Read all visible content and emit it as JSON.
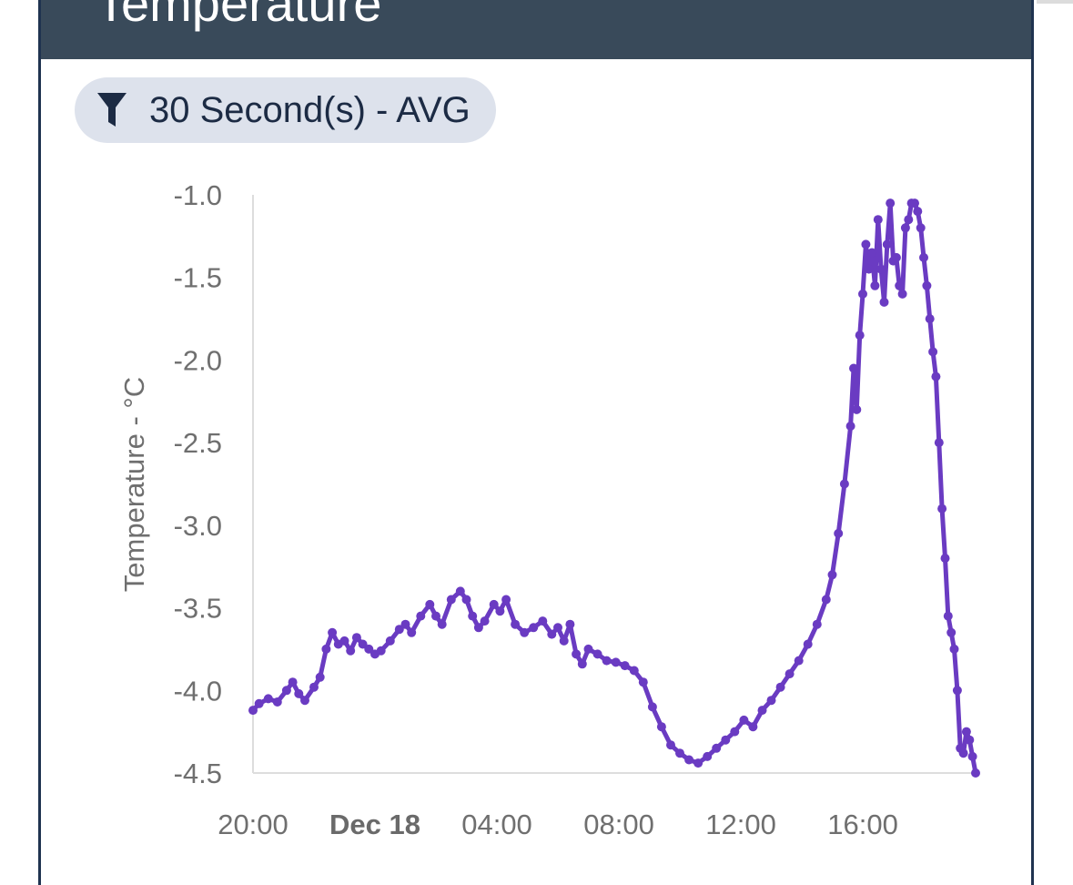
{
  "card": {
    "title": "Temperature"
  },
  "filter": {
    "label": "30 Second(s) - AVG",
    "icon": "filter-icon"
  },
  "colors": {
    "header_bg": "#394a5a",
    "line": "#6a3bc2",
    "chip_bg": "#dde2ec",
    "chip_text": "#1c2b44"
  },
  "chart_data": {
    "type": "line",
    "ylabel": "Temperature - °C",
    "ylim": [
      -4.5,
      -1.0
    ],
    "yticks": [
      "-1.0",
      "-1.5",
      "-2.0",
      "-2.5",
      "-3.0",
      "-3.5",
      "-4.0",
      "-4.5"
    ],
    "ytick_values": [
      -1.0,
      -1.5,
      -2.0,
      -2.5,
      -3.0,
      -3.5,
      -4.0,
      -4.5
    ],
    "xlim_hours": [
      -4,
      19.7
    ],
    "xticks": [
      {
        "label": "20:00",
        "hour": -4,
        "bold": false
      },
      {
        "label": "Dec 18",
        "hour": 0,
        "bold": true
      },
      {
        "label": "04:00",
        "hour": 4,
        "bold": false
      },
      {
        "label": "08:00",
        "hour": 8,
        "bold": false
      },
      {
        "label": "12:00",
        "hour": 12,
        "bold": false
      },
      {
        "label": "16:00",
        "hour": 16,
        "bold": false
      }
    ],
    "series": [
      {
        "x": [
          -4.0,
          -3.8,
          -3.5,
          -3.2,
          -2.9,
          -2.7,
          -2.5,
          -2.3,
          -2.0,
          -1.8,
          -1.6,
          -1.4,
          -1.2,
          -1.0,
          -0.8,
          -0.6,
          -0.4,
          -0.2,
          0.0,
          0.2,
          0.5,
          0.8,
          1.0,
          1.2,
          1.5,
          1.8,
          2.0,
          2.2,
          2.5,
          2.8,
          3.0,
          3.2,
          3.4,
          3.6,
          3.9,
          4.1,
          4.3,
          4.6,
          4.9,
          5.2,
          5.5,
          5.8,
          6.0,
          6.2,
          6.4,
          6.6,
          6.8,
          7.0,
          7.3,
          7.6,
          7.9,
          8.2,
          8.5,
          8.8,
          9.1,
          9.4,
          9.7,
          10.0,
          10.3,
          10.6,
          10.9,
          11.2,
          11.5,
          11.8,
          12.1,
          12.4,
          12.7,
          13.0,
          13.3,
          13.6,
          13.9,
          14.2,
          14.5,
          14.8,
          15.0,
          15.2,
          15.4,
          15.6,
          15.7,
          15.8,
          15.9,
          16.0,
          16.1,
          16.2,
          16.3,
          16.4,
          16.5,
          16.6,
          16.7,
          16.8,
          16.9,
          17.0,
          17.1,
          17.2,
          17.3,
          17.4,
          17.5,
          17.6,
          17.7,
          17.8,
          17.9,
          18.0,
          18.1,
          18.2,
          18.3,
          18.4,
          18.5,
          18.6,
          18.7,
          18.8,
          18.9,
          19.0,
          19.1,
          19.2,
          19.3,
          19.4,
          19.5,
          19.6,
          19.7
        ],
        "y": [
          -4.12,
          -4.08,
          -4.05,
          -4.07,
          -4.0,
          -3.95,
          -4.02,
          -4.06,
          -3.98,
          -3.92,
          -3.75,
          -3.65,
          -3.72,
          -3.7,
          -3.76,
          -3.68,
          -3.72,
          -3.75,
          -3.78,
          -3.76,
          -3.7,
          -3.63,
          -3.6,
          -3.65,
          -3.55,
          -3.48,
          -3.55,
          -3.6,
          -3.45,
          -3.4,
          -3.45,
          -3.55,
          -3.62,
          -3.58,
          -3.48,
          -3.52,
          -3.45,
          -3.6,
          -3.65,
          -3.62,
          -3.58,
          -3.66,
          -3.62,
          -3.7,
          -3.6,
          -3.78,
          -3.84,
          -3.75,
          -3.78,
          -3.82,
          -3.83,
          -3.85,
          -3.88,
          -3.95,
          -4.1,
          -4.22,
          -4.33,
          -4.38,
          -4.42,
          -4.44,
          -4.4,
          -4.35,
          -4.3,
          -4.25,
          -4.18,
          -4.22,
          -4.12,
          -4.06,
          -3.98,
          -3.9,
          -3.82,
          -3.72,
          -3.6,
          -3.45,
          -3.3,
          -3.05,
          -2.75,
          -2.4,
          -2.05,
          -2.3,
          -1.85,
          -1.6,
          -1.3,
          -1.45,
          -1.35,
          -1.55,
          -1.15,
          -1.45,
          -1.65,
          -1.3,
          -1.05,
          -1.4,
          -1.38,
          -1.55,
          -1.6,
          -1.2,
          -1.15,
          -1.05,
          -1.05,
          -1.1,
          -1.2,
          -1.38,
          -1.55,
          -1.75,
          -1.95,
          -2.1,
          -2.5,
          -2.9,
          -3.2,
          -3.55,
          -3.65,
          -3.75,
          -4.0,
          -4.35,
          -4.38,
          -4.25,
          -4.3,
          -4.4,
          -4.5
        ]
      }
    ],
    "grid": false,
    "legend": "none"
  }
}
